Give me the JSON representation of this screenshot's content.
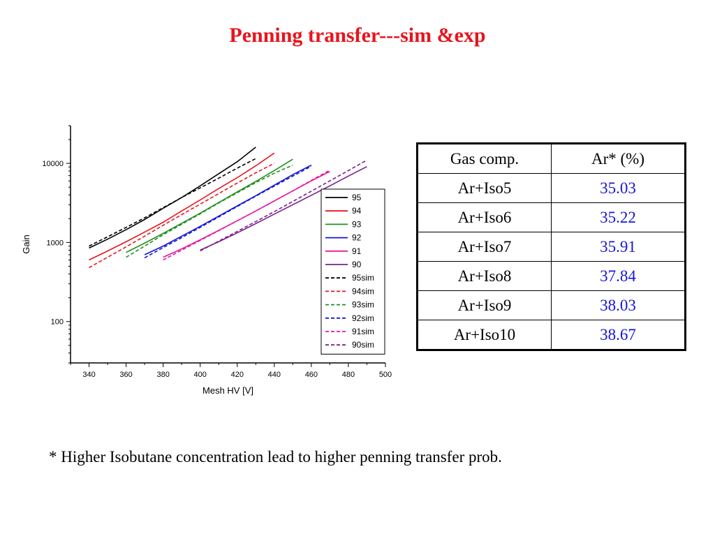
{
  "title": "Penning transfer---sim &exp",
  "chart_data": {
    "type": "line",
    "xlabel": "Mesh HV [V]",
    "ylabel": "Gain",
    "yscale": "log",
    "xlim": [
      330,
      500
    ],
    "ylim": [
      30,
      30000
    ],
    "xticks": [
      340,
      360,
      380,
      400,
      420,
      440,
      460,
      480,
      500
    ],
    "yticks": [
      100,
      1000,
      10000
    ],
    "ytick_labels": [
      "100",
      "1000",
      "10000"
    ],
    "legend_position": "right",
    "series": [
      {
        "name": "95",
        "color": "#000000",
        "dash": false,
        "x": [
          340,
          350,
          360,
          370,
          380,
          390,
          400,
          410,
          420,
          430
        ],
        "y": [
          850,
          1100,
          1450,
          1950,
          2700,
          3700,
          5200,
          7400,
          10500,
          16000
        ]
      },
      {
        "name": "94",
        "color": "#e8141c",
        "dash": false,
        "x": [
          340,
          350,
          360,
          370,
          380,
          390,
          400,
          410,
          420,
          430,
          440
        ],
        "y": [
          600,
          780,
          1020,
          1350,
          1800,
          2500,
          3450,
          4800,
          6600,
          9300,
          13500
        ]
      },
      {
        "name": "93",
        "color": "#1f8f1f",
        "dash": false,
        "x": [
          360,
          370,
          380,
          390,
          400,
          410,
          420,
          430,
          440,
          450
        ],
        "y": [
          750,
          980,
          1300,
          1750,
          2350,
          3200,
          4350,
          5900,
          8100,
          11300
        ]
      },
      {
        "name": "92",
        "color": "#1515d8",
        "dash": false,
        "x": [
          370,
          380,
          390,
          400,
          410,
          420,
          430,
          440,
          450,
          460
        ],
        "y": [
          700,
          900,
          1200,
          1600,
          2150,
          2900,
          3900,
          5300,
          7200,
          9500
        ]
      },
      {
        "name": "91",
        "color": "#e41a9c",
        "dash": false,
        "x": [
          380,
          390,
          400,
          410,
          420,
          430,
          440,
          450,
          460,
          470
        ],
        "y": [
          650,
          830,
          1080,
          1420,
          1880,
          2500,
          3350,
          4500,
          6000,
          7900
        ]
      },
      {
        "name": "90",
        "color": "#7b1f8f",
        "dash": false,
        "x": [
          400,
          410,
          420,
          430,
          440,
          450,
          460,
          470,
          480,
          490
        ],
        "y": [
          800,
          1020,
          1320,
          1730,
          2280,
          3000,
          3950,
          5200,
          6900,
          9100
        ]
      },
      {
        "name": "95sim",
        "color": "#000000",
        "dash": true,
        "x": [
          340,
          350,
          360,
          370,
          380,
          390,
          400,
          410,
          420,
          430
        ],
        "y": [
          900,
          1180,
          1550,
          2050,
          2750,
          3700,
          4900,
          6500,
          8700,
          11500
        ]
      },
      {
        "name": "94sim",
        "color": "#e8141c",
        "dash": true,
        "x": [
          340,
          350,
          360,
          370,
          380,
          390,
          400,
          410,
          420,
          430,
          440
        ],
        "y": [
          480,
          650,
          880,
          1200,
          1650,
          2250,
          3050,
          4150,
          5650,
          7600,
          10000
        ]
      },
      {
        "name": "93sim",
        "color": "#1f8f1f",
        "dash": true,
        "x": [
          360,
          370,
          380,
          390,
          400,
          410,
          420,
          430,
          440,
          450
        ],
        "y": [
          650,
          900,
          1250,
          1700,
          2300,
          3150,
          4250,
          5700,
          7500,
          9500
        ]
      },
      {
        "name": "92sim",
        "color": "#1515d8",
        "dash": true,
        "x": [
          370,
          380,
          390,
          400,
          410,
          420,
          430,
          440,
          450,
          460
        ],
        "y": [
          640,
          860,
          1150,
          1550,
          2100,
          2850,
          3850,
          5150,
          6900,
          9200
        ]
      },
      {
        "name": "91sim",
        "color": "#e41a9c",
        "dash": true,
        "x": [
          380,
          390,
          400,
          410,
          420,
          430,
          440,
          450,
          460,
          470
        ],
        "y": [
          600,
          800,
          1060,
          1410,
          1880,
          2500,
          3350,
          4500,
          6100,
          8200
        ]
      },
      {
        "name": "90sim",
        "color": "#7b1f8f",
        "dash": true,
        "x": [
          400,
          410,
          420,
          430,
          440,
          450,
          460,
          470,
          480,
          490
        ],
        "y": [
          780,
          1040,
          1380,
          1840,
          2450,
          3300,
          4450,
          6000,
          8100,
          11000
        ]
      }
    ]
  },
  "table": {
    "headers": [
      "Gas comp.",
      "Ar* (%)"
    ],
    "rows": [
      [
        "Ar+Iso5",
        "35.03"
      ],
      [
        "Ar+Iso6",
        "35.22"
      ],
      [
        "Ar+Iso7",
        "35.91"
      ],
      [
        "Ar+Iso8",
        "37.84"
      ],
      [
        "Ar+Iso9",
        "38.03"
      ],
      [
        "Ar+Iso10",
        "38.67"
      ]
    ],
    "value_color": "#1515d8"
  },
  "footnote": "* Higher Isobutane concentration lead to higher penning transfer prob."
}
